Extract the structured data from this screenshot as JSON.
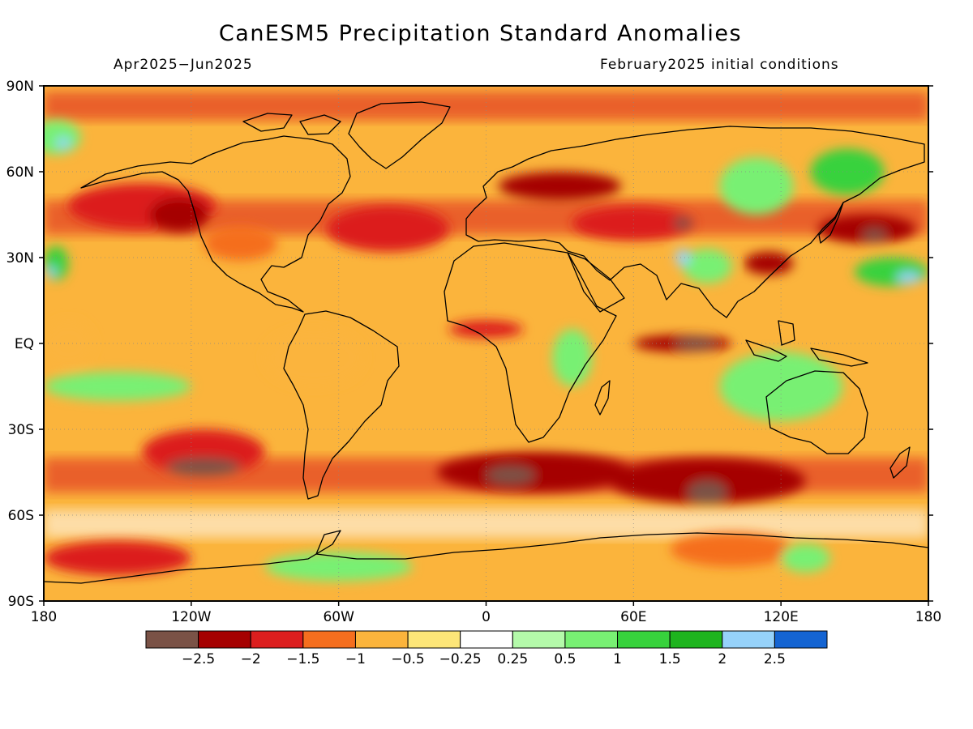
{
  "title": "CanESM5 Precipitation Standard Anomalies",
  "subtitle_left": "Apr2025−Jun2025",
  "subtitle_right": "February2025 initial conditions",
  "map": {
    "projection": "equirectangular",
    "lon_range": [
      -180,
      180
    ],
    "lat_range": [
      -90,
      90
    ],
    "lat_ticks": [
      {
        "value": 90,
        "label": "90N"
      },
      {
        "value": 60,
        "label": "60N"
      },
      {
        "value": 30,
        "label": "30N"
      },
      {
        "value": 0,
        "label": "EQ"
      },
      {
        "value": -30,
        "label": "30S"
      },
      {
        "value": -60,
        "label": "60S"
      },
      {
        "value": -90,
        "label": "90S"
      }
    ],
    "lon_ticks": [
      {
        "value": -180,
        "label": "180"
      },
      {
        "value": -120,
        "label": "120W"
      },
      {
        "value": -60,
        "label": "60W"
      },
      {
        "value": 0,
        "label": "0"
      },
      {
        "value": 60,
        "label": "60E"
      },
      {
        "value": 120,
        "label": "120E"
      },
      {
        "value": 180,
        "label": "180"
      }
    ],
    "anomaly_regions": [
      {
        "lon": -175,
        "lat": 72,
        "rx": 10,
        "ry": 6,
        "level": 0.75
      },
      {
        "lon": -172,
        "lat": 70,
        "rx": 3,
        "ry": 2,
        "level": 2.25
      },
      {
        "lon": -140,
        "lat": 48,
        "rx": 30,
        "ry": 8,
        "level": -1.75
      },
      {
        "lon": -125,
        "lat": 45,
        "rx": 12,
        "ry": 6,
        "level": -2.25
      },
      {
        "lon": -100,
        "lat": 35,
        "rx": 15,
        "ry": 6,
        "level": -1.25
      },
      {
        "lon": -175,
        "lat": 28,
        "rx": 5,
        "ry": 6,
        "level": 1.25
      },
      {
        "lon": -177,
        "lat": 25,
        "rx": 2,
        "ry": 2,
        "level": 2.25
      },
      {
        "lon": -40,
        "lat": 40,
        "rx": 25,
        "ry": 8,
        "level": -1.75
      },
      {
        "lon": 30,
        "lat": 55,
        "rx": 25,
        "ry": 5,
        "level": -2.25
      },
      {
        "lon": 60,
        "lat": 42,
        "rx": 25,
        "ry": 6,
        "level": -1.75
      },
      {
        "lon": 80,
        "lat": 42,
        "rx": 4,
        "ry": 2,
        "level": -2.75
      },
      {
        "lon": 110,
        "lat": 55,
        "rx": 15,
        "ry": 10,
        "level": 0.75
      },
      {
        "lon": 147,
        "lat": 60,
        "rx": 15,
        "ry": 8,
        "level": 1.25
      },
      {
        "lon": 155,
        "lat": 40,
        "rx": 20,
        "ry": 5,
        "level": -2.25
      },
      {
        "lon": 158,
        "lat": 38,
        "rx": 5,
        "ry": 2,
        "level": -2.75
      },
      {
        "lon": 165,
        "lat": 25,
        "rx": 15,
        "ry": 5,
        "level": 1.25
      },
      {
        "lon": 172,
        "lat": 23,
        "rx": 5,
        "ry": 2,
        "level": 2.25
      },
      {
        "lon": 115,
        "lat": 28,
        "rx": 10,
        "ry": 4,
        "level": -2.25
      },
      {
        "lon": 90,
        "lat": 27,
        "rx": 10,
        "ry": 6,
        "level": 0.75
      },
      {
        "lon": 80,
        "lat": 30,
        "rx": 3,
        "ry": 3,
        "level": 2.25
      },
      {
        "lon": 0,
        "lat": 5,
        "rx": 15,
        "ry": 3,
        "level": -1.75
      },
      {
        "lon": 80,
        "lat": 0,
        "rx": 20,
        "ry": 3,
        "level": -2.25
      },
      {
        "lon": 85,
        "lat": 0,
        "rx": 8,
        "ry": 2,
        "level": -2.75
      },
      {
        "lon": 120,
        "lat": -15,
        "rx": 25,
        "ry": 12,
        "level": 0.75
      },
      {
        "lon": 35,
        "lat": -5,
        "rx": 8,
        "ry": 10,
        "level": 0.75
      },
      {
        "lon": -115,
        "lat": -38,
        "rx": 25,
        "ry": 8,
        "level": -1.75
      },
      {
        "lon": -115,
        "lat": -43,
        "rx": 15,
        "ry": 3,
        "level": -2.75
      },
      {
        "lon": 20,
        "lat": -45,
        "rx": 40,
        "ry": 7,
        "level": -2.25
      },
      {
        "lon": 10,
        "lat": -46,
        "rx": 10,
        "ry": 3,
        "level": -2.75
      },
      {
        "lon": 90,
        "lat": -48,
        "rx": 40,
        "ry": 8,
        "level": -2.25
      },
      {
        "lon": 90,
        "lat": -52,
        "rx": 8,
        "ry": 4,
        "level": -2.75
      },
      {
        "lon": -150,
        "lat": -75,
        "rx": 30,
        "ry": 6,
        "level": -1.75
      },
      {
        "lon": -60,
        "lat": -78,
        "rx": 30,
        "ry": 5,
        "level": 0.75
      },
      {
        "lon": 100,
        "lat": -72,
        "rx": 25,
        "ry": 6,
        "level": -1.25
      },
      {
        "lon": 130,
        "lat": -75,
        "rx": 10,
        "ry": 5,
        "level": 0.75
      },
      {
        "lon": -150,
        "lat": -15,
        "rx": 30,
        "ry": 5,
        "level": 0.75
      },
      {
        "lon": -70,
        "lat": -5,
        "rx": 20,
        "ry": 10,
        "level": -0.75
      },
      {
        "lon": -170,
        "lat": 0,
        "rx": 10,
        "ry": 8,
        "level": -0.75
      }
    ]
  },
  "colorbar": {
    "colors": [
      "#7a5246",
      "#a50000",
      "#dc1e1e",
      "#f56e1e",
      "#fbb43c",
      "#fde678",
      "#ffffff",
      "#b4faaa",
      "#78f073",
      "#37d23c",
      "#1eb41e",
      "#96d2fa",
      "#1464d2"
    ],
    "labels": [
      "−2.5",
      "−2",
      "−1.5",
      "−1",
      "−0.5",
      "−0.25",
      "0.25",
      "0.5",
      "1",
      "1.5",
      "2",
      "2.5"
    ]
  }
}
